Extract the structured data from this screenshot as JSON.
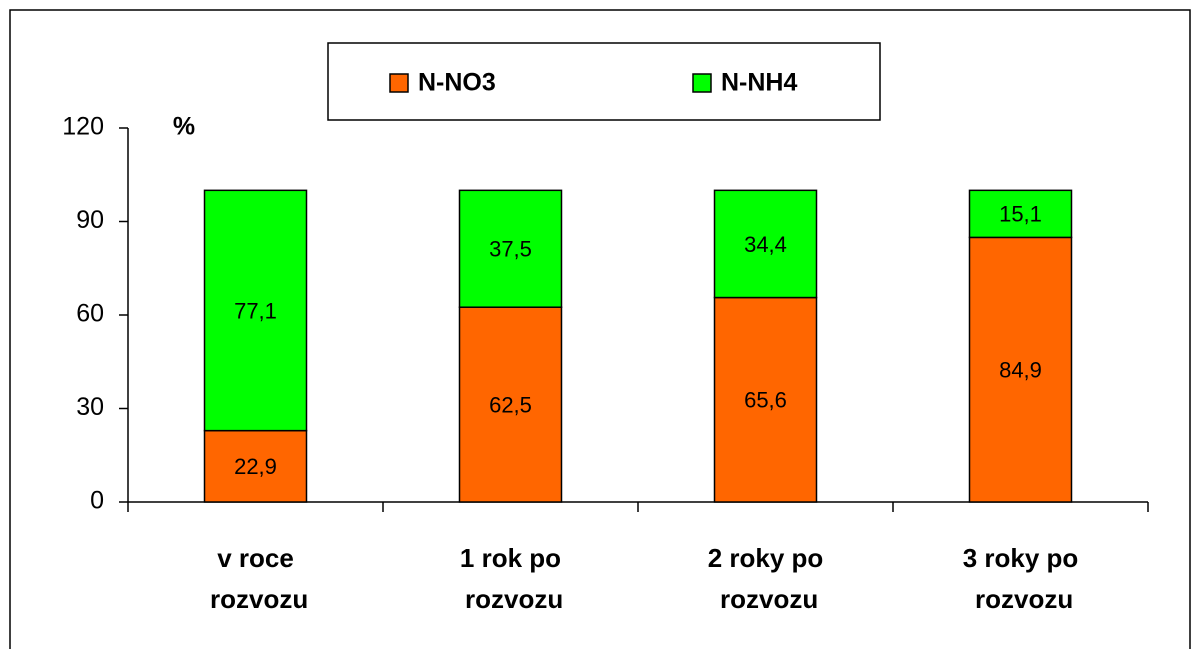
{
  "chart_data": {
    "type": "stacked_bar",
    "y_label": "%",
    "categories": [
      "v roce rozvozu",
      "1 rok po rozvozu",
      "2 roky po rozvozu",
      "3 roky po rozvozu"
    ],
    "series": [
      {
        "name": "N-NO3",
        "color": "#ff6600",
        "values": [
          22.9,
          62.5,
          65.6,
          84.9
        ],
        "value_labels": [
          "22,9",
          "62,5",
          "65,6",
          "84,9"
        ]
      },
      {
        "name": "N-NH4",
        "color": "#00ff00",
        "values": [
          77.1,
          37.5,
          34.4,
          15.1
        ],
        "value_labels": [
          "77,1",
          "37,5",
          "34,4",
          "15,1"
        ]
      }
    ],
    "ylim": [
      0,
      120
    ],
    "yticks": [
      0,
      30,
      60,
      90,
      120
    ],
    "grid": false,
    "legend": "top"
  }
}
